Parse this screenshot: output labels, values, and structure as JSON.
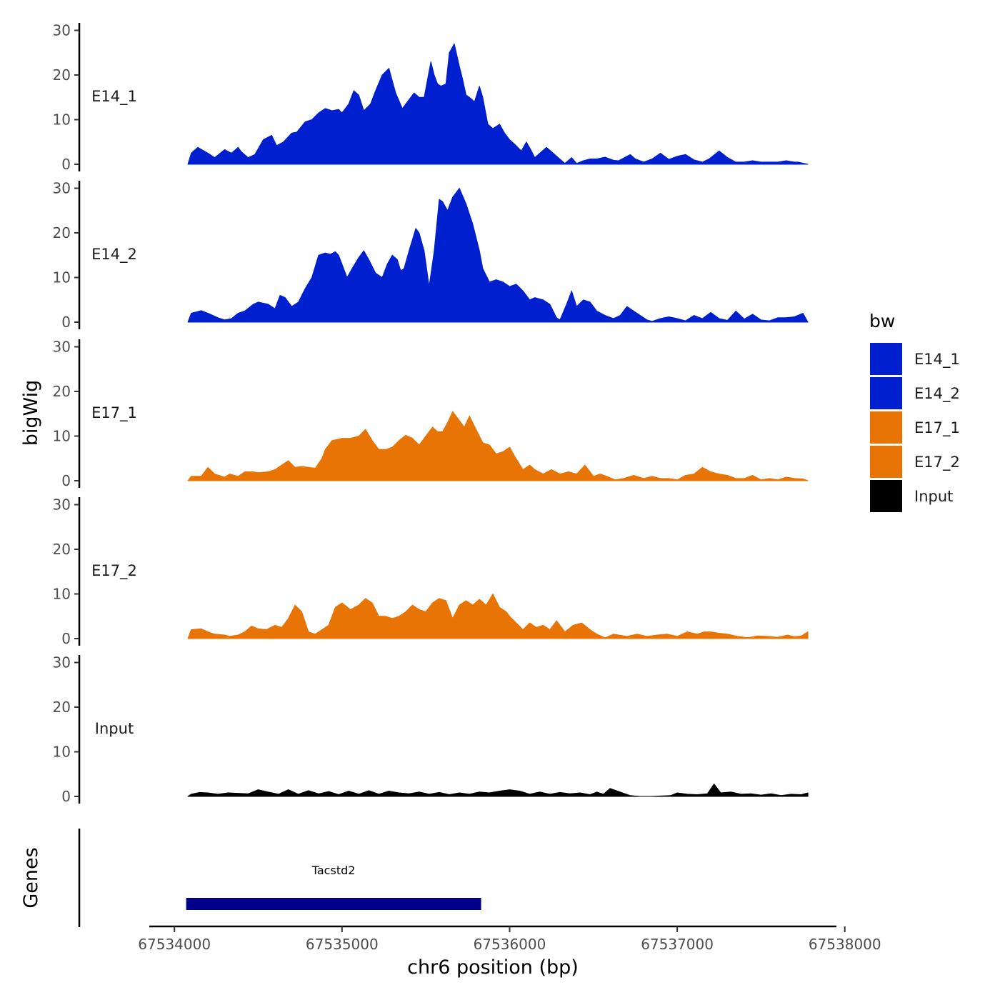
{
  "chart_data": {
    "type": "area",
    "xlabel": "chr6 position (bp)",
    "ylabel": "bigWig",
    "genes_label": "Genes",
    "xlim": [
      67533850,
      67537950
    ],
    "xticks": [
      67534000,
      67535000,
      67536000,
      67537000,
      67538000
    ],
    "xtick_labels": [
      "67534000",
      "67535000",
      "67536000",
      "67537000",
      "67538000"
    ],
    "ylim": [
      0,
      32
    ],
    "yticks": [
      0,
      10,
      20,
      30
    ],
    "ytick_labels": [
      "0",
      "10",
      "20",
      "30"
    ],
    "legend": {
      "title": "bw",
      "position": "right",
      "entries": [
        {
          "label": "E14_1",
          "color": "#0020D0"
        },
        {
          "label": "E14_2",
          "color": "#0020D0"
        },
        {
          "label": "E17_1",
          "color": "#E87405"
        },
        {
          "label": "E17_2",
          "color": "#E87405"
        },
        {
          "label": "Input",
          "color": "#000000"
        }
      ]
    },
    "series": [
      {
        "name": "E14_1",
        "color": "#0020D0",
        "x": [
          67534080,
          67534100,
          67534140,
          67534200,
          67534240,
          67534300,
          67534340,
          67534380,
          67534400,
          67534440,
          67534480,
          67534530,
          67534580,
          67534610,
          67534650,
          67534700,
          67534730,
          67534780,
          67534820,
          67534860,
          67534900,
          67534940,
          67534980,
          67535000,
          67535040,
          67535070,
          67535100,
          67535130,
          67535170,
          67535200,
          67535240,
          67535280,
          67535320,
          67535360,
          67535400,
          67535430,
          67535460,
          67535490,
          67535530,
          67535550,
          67535570,
          67535590,
          67535620,
          67535640,
          67535670,
          67535700,
          67535720,
          67535740,
          67535760,
          67535790,
          67535820,
          67535840,
          67535870,
          67535900,
          67535940,
          67535970,
          67536000,
          67536030,
          67536070,
          67536100,
          67536130,
          67536150,
          67536180,
          67536220,
          67536260,
          67536290,
          67536330,
          67536370,
          67536400,
          67536440,
          67536480,
          67536520,
          67536570,
          67536620,
          67536650,
          67536680,
          67536720,
          67536750,
          67536800,
          67536850,
          67536900,
          67536950,
          67537000,
          67537050,
          67537100,
          67537150,
          67537190,
          67537250,
          67537300,
          67537350,
          67537400,
          67537450,
          67537500,
          67537550,
          67537600,
          67537650,
          67537700,
          67537720,
          67537780
        ],
        "values": [
          0,
          2.5,
          3.8,
          2.5,
          1.5,
          3.3,
          2.5,
          3.8,
          2.8,
          1.5,
          2.2,
          5.5,
          6.5,
          4.2,
          5.0,
          7.0,
          7.2,
          9.5,
          10.0,
          11.5,
          12.5,
          12.0,
          12.3,
          11.5,
          13.5,
          16.5,
          15.5,
          12.0,
          13.5,
          16.5,
          20.0,
          21.5,
          16.0,
          12.5,
          14.5,
          16.0,
          15.0,
          15.0,
          23.0,
          20.0,
          18.0,
          17.5,
          18.0,
          25.0,
          27.0,
          22.0,
          19.0,
          15.5,
          15.0,
          14.0,
          17.5,
          15.0,
          9.0,
          8.0,
          9.0,
          7.0,
          5.5,
          4.5,
          3.0,
          5.0,
          3.0,
          1.5,
          2.5,
          3.8,
          2.5,
          1.5,
          0.2,
          1.5,
          0.2,
          0.8,
          1.2,
          1.2,
          1.6,
          0.9,
          0.8,
          1.4,
          2.2,
          1.2,
          0.5,
          1.2,
          2.5,
          1.1,
          1.8,
          2.2,
          1.0,
          0.5,
          1.2,
          3.0,
          1.5,
          0.5,
          0.5,
          0.8,
          0.5,
          0.5,
          0.5,
          0.8,
          0.5,
          0.5,
          0
        ]
      },
      {
        "name": "E14_2",
        "color": "#0020D0",
        "x": [
          67534080,
          67534100,
          67534160,
          67534200,
          67534260,
          67534300,
          67534340,
          67534380,
          67534420,
          67534470,
          67534500,
          67534560,
          67534600,
          67534630,
          67534660,
          67534700,
          67534740,
          67534780,
          67534820,
          67534860,
          67534900,
          67534930,
          67534960,
          67534980,
          67535000,
          67535030,
          67535060,
          67535100,
          67535130,
          67535160,
          67535200,
          67535240,
          67535270,
          67535300,
          67535330,
          67535350,
          67535370,
          67535400,
          67535440,
          67535460,
          67535490,
          67535520,
          67535550,
          67535580,
          67535600,
          67535630,
          67535660,
          67535700,
          67535740,
          67535780,
          67535820,
          67535840,
          67535880,
          67535920,
          67535960,
          67536000,
          67536040,
          67536080,
          67536120,
          67536150,
          67536200,
          67536240,
          67536280,
          67536300,
          67536340,
          67536370,
          67536400,
          67536440,
          67536480,
          67536520,
          67536570,
          67536620,
          67536660,
          67536700,
          67536760,
          67536820,
          67536850,
          67536900,
          67536950,
          67537000,
          67537050,
          67537100,
          67537150,
          67537200,
          67537250,
          67537300,
          67537350,
          67537400,
          67537450,
          67537500,
          67537550,
          67537600,
          67537650,
          67537700,
          67537750,
          67537780
        ],
        "values": [
          0,
          2.0,
          2.6,
          2.0,
          1.0,
          0.5,
          0.8,
          2.0,
          2.5,
          4.0,
          4.5,
          4.0,
          3.0,
          6.0,
          5.5,
          3.5,
          4.5,
          7.5,
          10.0,
          15.0,
          15.5,
          15.2,
          15.8,
          15.0,
          13.0,
          10.0,
          12.0,
          14.5,
          16.0,
          14.0,
          11.0,
          10.0,
          13.0,
          15.0,
          14.0,
          11.5,
          12.0,
          16.0,
          21.0,
          20.0,
          16.0,
          8.0,
          16.0,
          27.5,
          27.0,
          25.0,
          28.0,
          30.0,
          26.5,
          22.0,
          16.0,
          12.0,
          9.0,
          9.5,
          9.0,
          8.0,
          8.5,
          7.0,
          5.0,
          5.5,
          5.0,
          4.0,
          1.0,
          0.5,
          4.0,
          7.0,
          3.5,
          5.0,
          4.5,
          2.5,
          1.5,
          0.8,
          1.5,
          3.5,
          2.0,
          0.5,
          0.2,
          0.8,
          1.2,
          0.8,
          0.3,
          1.5,
          0.8,
          2.2,
          0.8,
          0.4,
          2.5,
          0.7,
          1.8,
          0.5,
          0.3,
          1.0,
          1.0,
          1.2,
          2.0,
          0
        ]
      },
      {
        "name": "E17_1",
        "color": "#E87405",
        "x": [
          67534080,
          67534100,
          67534160,
          67534200,
          67534240,
          67534300,
          67534330,
          67534380,
          67534420,
          67534470,
          67534500,
          67534560,
          67534600,
          67534640,
          67534680,
          67534720,
          67534760,
          67534800,
          67534840,
          67534880,
          67534900,
          67534940,
          67534980,
          67535000,
          67535050,
          67535100,
          67535140,
          67535180,
          67535220,
          67535260,
          67535300,
          67535340,
          67535380,
          67535420,
          67535460,
          67535500,
          67535540,
          67535570,
          67535600,
          67535630,
          67535660,
          67535700,
          67535730,
          67535760,
          67535800,
          67535840,
          67535880,
          67535920,
          67535960,
          67536000,
          67536030,
          67536080,
          67536120,
          67536150,
          67536200,
          67536250,
          67536300,
          67536350,
          67536400,
          67536450,
          67536500,
          67536540,
          67536580,
          67536630,
          67536680,
          67536740,
          67536800,
          67536850,
          67536900,
          67536950,
          67537000,
          67537050,
          67537100,
          67537150,
          67537200,
          67537250,
          67537300,
          67537350,
          67537400,
          67537450,
          67537500,
          67537550,
          67537600,
          67537650,
          67537700,
          67537750,
          67537780
        ],
        "values": [
          0,
          1.0,
          1.0,
          3.0,
          1.5,
          0.8,
          1.5,
          1.0,
          2.0,
          2.0,
          1.8,
          2.0,
          2.5,
          3.5,
          4.5,
          3.0,
          3.2,
          3.0,
          2.8,
          5.0,
          7.0,
          9.0,
          9.3,
          9.5,
          9.5,
          10.0,
          11.5,
          9.0,
          7.0,
          7.0,
          7.5,
          9.0,
          10.2,
          9.5,
          8.0,
          10.0,
          12.0,
          11.0,
          11.0,
          13.0,
          15.5,
          13.5,
          12.0,
          14.5,
          11.5,
          8.5,
          8.0,
          6.0,
          6.5,
          7.5,
          5.5,
          2.5,
          3.5,
          2.5,
          1.5,
          2.5,
          1.5,
          2.0,
          1.5,
          3.5,
          1.0,
          1.5,
          1.0,
          0.2,
          0.5,
          1.2,
          0.5,
          1.0,
          0.5,
          0.5,
          0.2,
          1.2,
          1.5,
          3.0,
          2.0,
          1.5,
          1.2,
          0.5,
          0.5,
          1.2,
          0.2,
          0.5,
          0.2,
          0.8,
          0.5,
          0.4,
          0
        ]
      },
      {
        "name": "E17_2",
        "color": "#E87405",
        "x": [
          67534080,
          67534100,
          67534160,
          67534200,
          67534240,
          67534300,
          67534330,
          67534380,
          67534420,
          67534460,
          67534500,
          67534550,
          67534600,
          67534640,
          67534680,
          67534720,
          67534760,
          67534800,
          67534840,
          67534880,
          67534920,
          67534960,
          67535000,
          67535050,
          67535100,
          67535140,
          67535180,
          67535220,
          67535260,
          67535300,
          67535340,
          67535380,
          67535420,
          67535460,
          67535500,
          67535540,
          67535580,
          67535620,
          67535660,
          67535700,
          67535740,
          67535780,
          67535820,
          67535860,
          67535900,
          67535940,
          67535980,
          67536000,
          67536040,
          67536080,
          67536120,
          67536160,
          67536200,
          67536240,
          67536280,
          67536330,
          67536380,
          67536430,
          67536480,
          67536520,
          67536570,
          67536620,
          67536700,
          67536760,
          67536820,
          67536880,
          67536940,
          67537000,
          67537060,
          67537120,
          67537160,
          67537200,
          67537250,
          67537300,
          67537360,
          67537420,
          67537480,
          67537540,
          67537600,
          67537660,
          67537700,
          67537740,
          67537780
        ],
        "values": [
          0,
          2.0,
          2.2,
          1.5,
          1.0,
          0.8,
          0.5,
          0.8,
          1.5,
          2.8,
          2.2,
          2.0,
          3.0,
          2.5,
          4.5,
          7.5,
          6.0,
          1.5,
          1.0,
          2.0,
          3.0,
          7.0,
          8.0,
          6.5,
          7.5,
          9.0,
          8.0,
          5.0,
          5.0,
          4.5,
          5.0,
          6.0,
          7.5,
          6.5,
          6.0,
          8.0,
          9.0,
          8.5,
          4.5,
          7.5,
          8.5,
          7.5,
          8.8,
          7.5,
          10.0,
          7.0,
          6.0,
          5.0,
          3.5,
          2.0,
          3.5,
          2.5,
          3.0,
          2.0,
          4.0,
          1.5,
          3.0,
          3.5,
          2.0,
          1.0,
          0.2,
          1.0,
          0.5,
          1.0,
          0.5,
          0.8,
          1.0,
          0.5,
          1.5,
          1.0,
          1.5,
          1.5,
          1.2,
          1.0,
          0.5,
          0.2,
          0.6,
          0.5,
          0.3,
          0.8,
          0.4,
          0.6,
          1.5
        ]
      },
      {
        "name": "Input",
        "color": "#000000",
        "x": [
          67534080,
          67534100,
          67534150,
          67534200,
          67534260,
          67534320,
          67534380,
          67534440,
          67534500,
          67534560,
          67534620,
          67534680,
          67534740,
          67534800,
          67534860,
          67534920,
          67534980,
          67535040,
          67535100,
          67535160,
          67535220,
          67535280,
          67535340,
          67535400,
          67535460,
          67535520,
          67535580,
          67535640,
          67535700,
          67535760,
          67535820,
          67535880,
          67535940,
          67536000,
          67536060,
          67536120,
          67536180,
          67536240,
          67536300,
          67536360,
          67536420,
          67536480,
          67536520,
          67536560,
          67536600,
          67536660,
          67536720,
          67536780,
          67536840,
          67536900,
          67536960,
          67537000,
          67537060,
          67537120,
          67537180,
          67537220,
          67537260,
          67537320,
          67537380,
          67537440,
          67537500,
          67537560,
          67537620,
          67537680,
          67537740,
          67537780
        ],
        "values": [
          0,
          0.5,
          0.9,
          0.8,
          0.5,
          0.8,
          0.7,
          0.6,
          1.5,
          1.0,
          0.5,
          1.5,
          0.5,
          1.3,
          0.6,
          1.1,
          0.4,
          1.2,
          0.5,
          1.3,
          0.5,
          1.2,
          0.8,
          0.6,
          1.0,
          0.5,
          0.9,
          0.4,
          0.8,
          0.5,
          1.0,
          0.8,
          1.2,
          1.5,
          1.2,
          0.5,
          1.0,
          0.5,
          0.9,
          0.6,
          0.8,
          0.4,
          1.0,
          0.5,
          1.8,
          1.0,
          0.2,
          0,
          0,
          0.1,
          0.2,
          0.8,
          0.5,
          0.4,
          0.6,
          2.8,
          0.8,
          1.0,
          0.5,
          0.6,
          0.3,
          0.6,
          0.2,
          0.5,
          0.4,
          0.8
        ]
      }
    ],
    "genes": [
      {
        "name": "Tacstd2",
        "start": 67534070,
        "end": 67535830,
        "color": "#00008B"
      }
    ]
  }
}
